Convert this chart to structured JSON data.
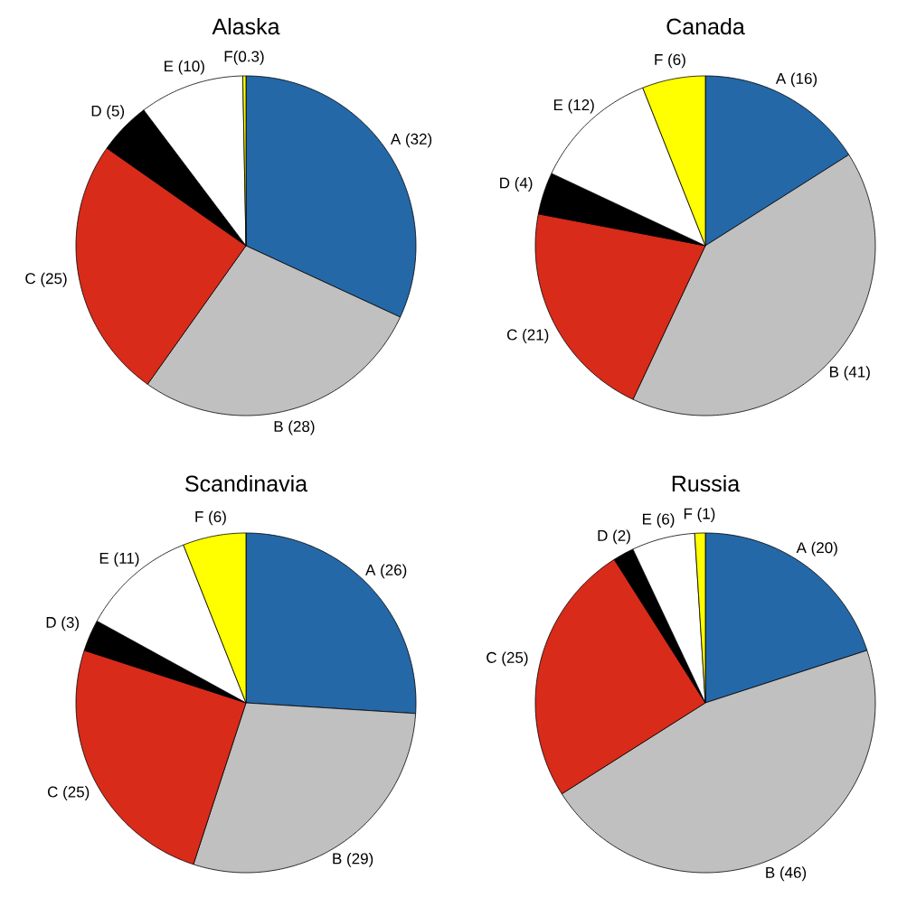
{
  "chart_data": [
    {
      "type": "pie",
      "title": "Alaska",
      "categories": [
        "A (32)",
        "B (28)",
        "C (25)",
        "D (5)",
        "E (10)",
        "F(0.3)"
      ],
      "values": [
        32,
        28,
        25,
        5,
        10,
        0.3
      ],
      "colors": [
        "#2468a8",
        "#c0c0c0",
        "#d92b1a",
        "#000000",
        "#ffffff",
        "#ffff00"
      ]
    },
    {
      "type": "pie",
      "title": "Canada",
      "categories": [
        "A (16)",
        "B (41)",
        "C (21)",
        "D (4)",
        "E (12)",
        "F (6)"
      ],
      "values": [
        16,
        41,
        21,
        4,
        12,
        6
      ],
      "colors": [
        "#2468a8",
        "#c0c0c0",
        "#d92b1a",
        "#000000",
        "#ffffff",
        "#ffff00"
      ]
    },
    {
      "type": "pie",
      "title": "Scandinavia",
      "categories": [
        "A (26)",
        "B (29)",
        "C (25)",
        "D (3)",
        "E (11)",
        "F (6)"
      ],
      "values": [
        26,
        29,
        25,
        3,
        11,
        6
      ],
      "colors": [
        "#2468a8",
        "#c0c0c0",
        "#d92b1a",
        "#000000",
        "#ffffff",
        "#ffff00"
      ]
    },
    {
      "type": "pie",
      "title": "Russia",
      "categories": [
        "A (20)",
        "B (46)",
        "C (25)",
        "D (2)",
        "E (6)",
        "F (1)"
      ],
      "values": [
        20,
        46,
        25,
        2,
        6,
        1
      ],
      "colors": [
        "#2468a8",
        "#c0c0c0",
        "#d92b1a",
        "#000000",
        "#ffffff",
        "#ffff00"
      ]
    }
  ]
}
